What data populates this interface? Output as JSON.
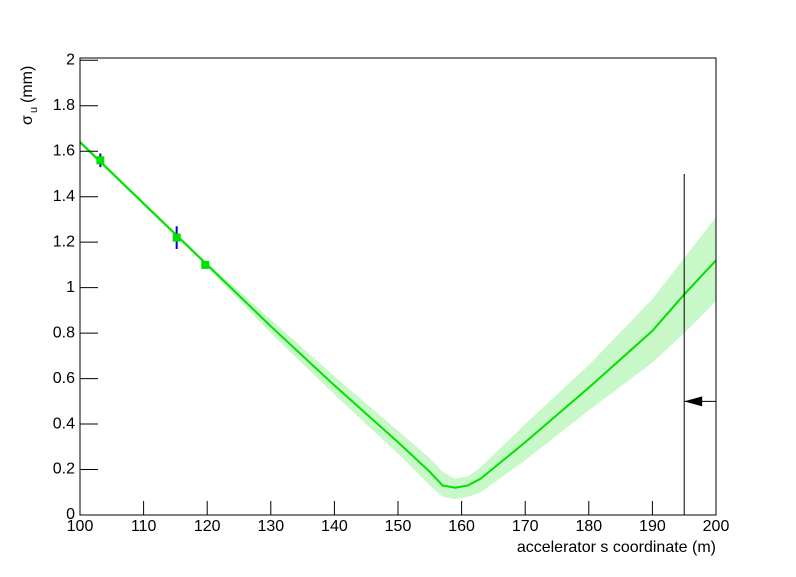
{
  "chart_data": {
    "type": "line",
    "xlabel": "accelerator s coordinate (m)",
    "ylabel": "σ",
    "ylabel_sub": "u",
    "ylabel_unit": "(mm)",
    "xlim": [
      100,
      200
    ],
    "ylim": [
      0,
      2.01
    ],
    "xticks": [
      100,
      110,
      120,
      130,
      140,
      150,
      160,
      170,
      180,
      190,
      200
    ],
    "yticks": [
      0,
      0.2,
      0.4,
      0.6,
      0.8,
      1,
      1.2,
      1.4,
      1.6,
      1.8,
      2
    ],
    "series": [
      {
        "kind": "fit",
        "color": "#00e000",
        "band_color": "#c8f8c8",
        "x": [
          100,
          110,
          120,
          130,
          140,
          150,
          155,
          157,
          159,
          161,
          163,
          170,
          180,
          190,
          195,
          200
        ],
        "values": [
          1.64,
          1.37,
          1.1,
          0.83,
          0.57,
          0.32,
          0.19,
          0.13,
          0.12,
          0.13,
          0.16,
          0.32,
          0.56,
          0.81,
          0.97,
          1.12
        ],
        "lower": [
          1.63,
          1.36,
          1.09,
          0.8,
          0.53,
          0.27,
          0.13,
          0.08,
          0.07,
          0.08,
          0.1,
          0.24,
          0.46,
          0.67,
          0.8,
          0.94
        ],
        "upper": [
          1.65,
          1.38,
          1.11,
          0.86,
          0.61,
          0.37,
          0.25,
          0.19,
          0.16,
          0.17,
          0.21,
          0.4,
          0.66,
          0.95,
          1.13,
          1.31
        ]
      },
      {
        "kind": "points",
        "color": "#00e000",
        "error_color": "#0000cc",
        "x": [
          103.2,
          115.2,
          119.7
        ],
        "values": [
          1.56,
          1.22,
          1.1
        ],
        "errors": [
          0.03,
          0.05,
          0.015
        ]
      }
    ],
    "cut": {
      "x": 195,
      "y_top": 1.5,
      "arrow_y": 0.5,
      "arrow_from": 200
    }
  }
}
